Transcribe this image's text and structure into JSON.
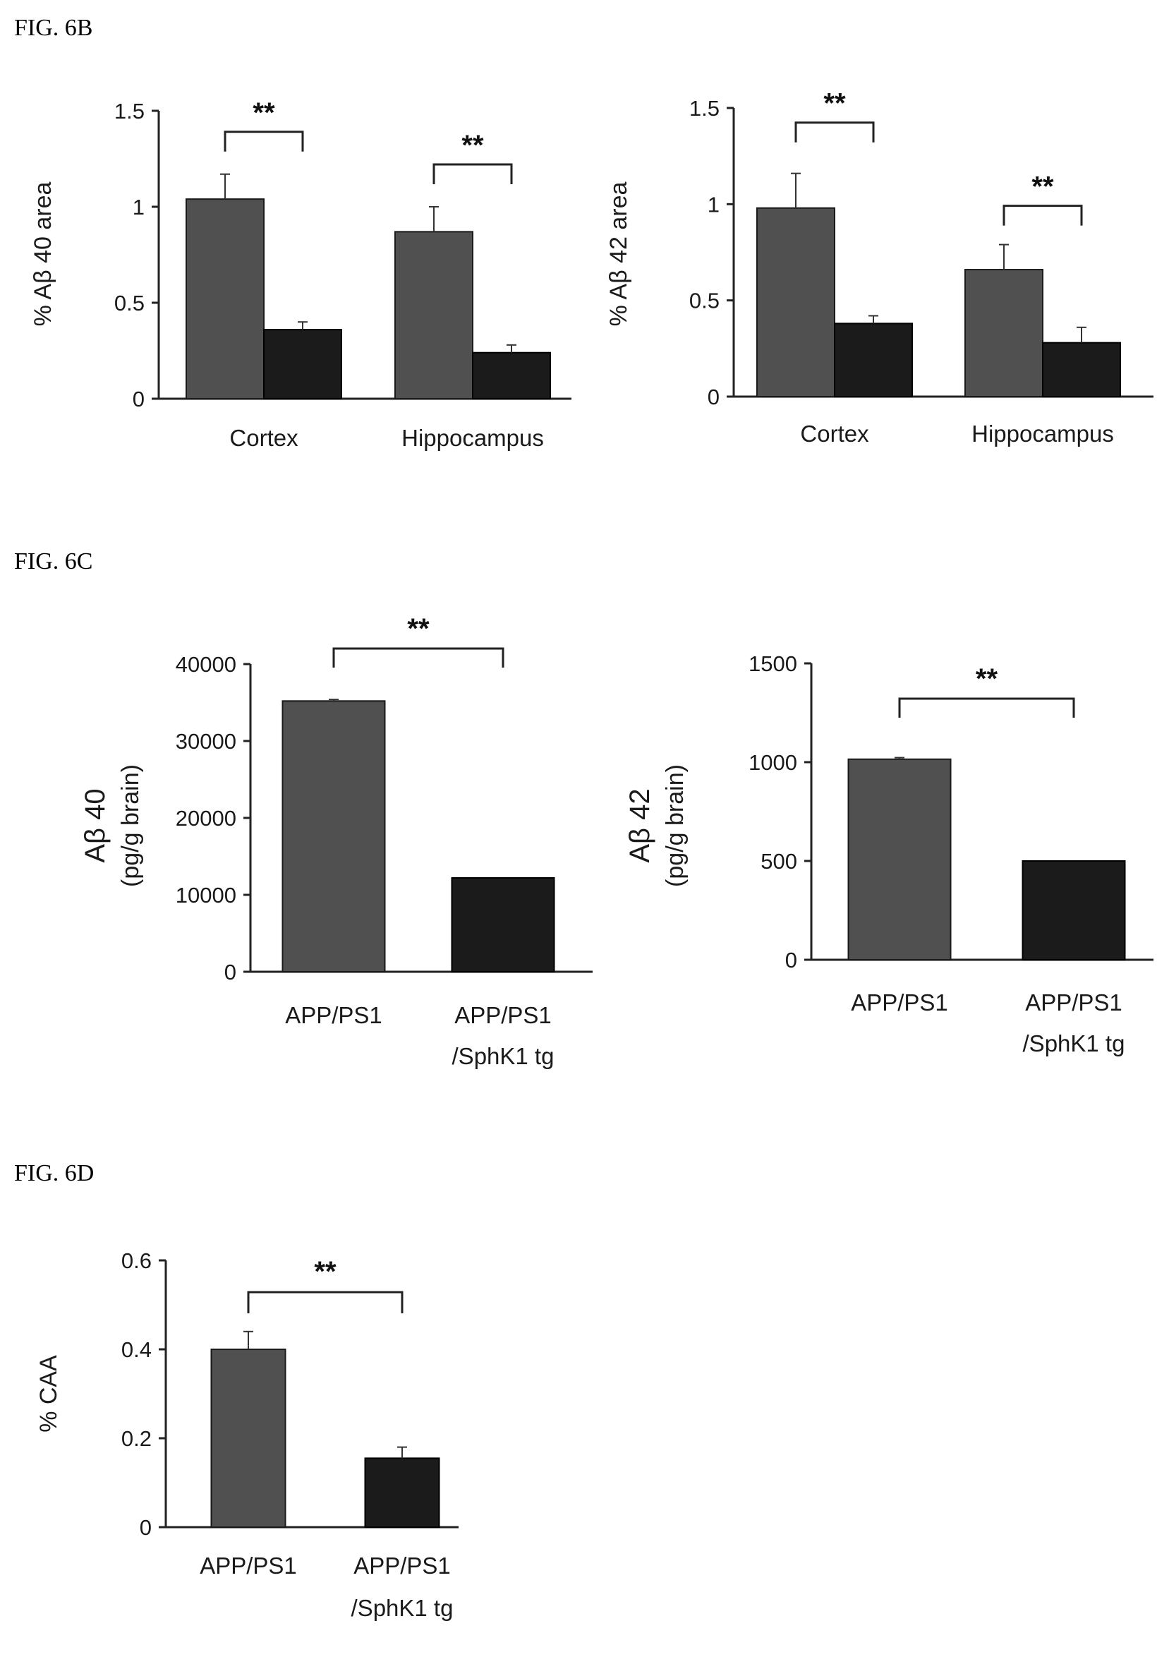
{
  "figure_labels": {
    "fig_6b": "FIG. 6B",
    "fig_6c": "FIG. 6C",
    "fig_6d": "FIG. 6D"
  },
  "colors": {
    "group_1": "#505050",
    "group_2": "#1b1b1b",
    "axis": "#222222"
  },
  "chart_data": [
    {
      "id": "ab40-area",
      "type": "bar",
      "ylabel": "% Aβ 40 area",
      "categories": [
        "Cortex",
        "Hippocampus"
      ],
      "series": [
        {
          "values": [
            1.04,
            0.87
          ],
          "errors": [
            0.13,
            0.13
          ]
        },
        {
          "values": [
            0.36,
            0.24
          ],
          "errors": [
            0.04,
            0.04
          ]
        }
      ],
      "ylim": [
        0,
        1.5
      ],
      "yticks": [
        0,
        0.5,
        1,
        1.5
      ],
      "ytick_labels": [
        "0",
        "0.5",
        "1",
        "1.5"
      ],
      "significance": [
        "**",
        "**"
      ],
      "grid": false
    },
    {
      "id": "ab42-area",
      "type": "bar",
      "ylabel": "% Aβ 42 area",
      "categories": [
        "Cortex",
        "Hippocampus"
      ],
      "series": [
        {
          "values": [
            0.98,
            0.66
          ],
          "errors": [
            0.18,
            0.13
          ]
        },
        {
          "values": [
            0.38,
            0.28
          ],
          "errors": [
            0.04,
            0.08
          ]
        }
      ],
      "ylim": [
        0,
        1.5
      ],
      "yticks": [
        0,
        0.5,
        1,
        1.5
      ],
      "ytick_labels": [
        "0",
        "0.5",
        "1",
        "1.5"
      ],
      "significance": [
        "**",
        "**"
      ],
      "grid": false
    },
    {
      "id": "ab40-brain",
      "type": "bar",
      "ylabel": "Aβ 40",
      "ylabel_line2": "(pg/g brain)",
      "categories": [
        "APP/PS1",
        "APP/PS1\n/SphK1 tg"
      ],
      "values": [
        35200,
        12200
      ],
      "errors": [
        200,
        0
      ],
      "ylim": [
        0,
        40000
      ],
      "yticks": [
        0,
        10000,
        20000,
        30000,
        40000
      ],
      "ytick_labels": [
        "0",
        "10000",
        "20000",
        "30000",
        "40000"
      ],
      "significance": "**",
      "grid": false
    },
    {
      "id": "ab42-brain",
      "type": "bar",
      "ylabel": "Aβ 42",
      "ylabel_line2": "(pg/g brain)",
      "categories": [
        "APP/PS1",
        "APP/PS1\n/SphK1 tg"
      ],
      "values": [
        1015,
        500
      ],
      "errors": [
        8,
        0
      ],
      "ylim": [
        0,
        1500
      ],
      "yticks": [
        0,
        500,
        1000,
        1500
      ],
      "ytick_labels": [
        "0",
        "500",
        "1000",
        "1500"
      ],
      "significance": "**",
      "grid": false
    },
    {
      "id": "caa",
      "type": "bar",
      "ylabel": "% CAA",
      "categories": [
        "APP/PS1",
        "APP/PS1\n/SphK1 tg"
      ],
      "values": [
        0.4,
        0.155
      ],
      "errors": [
        0.04,
        0.025
      ],
      "ylim": [
        0,
        0.6
      ],
      "yticks": [
        0,
        0.2,
        0.4,
        0.6
      ],
      "ytick_labels": [
        "0",
        "0.2",
        "0.4",
        "0.6"
      ],
      "significance": "**",
      "grid": false
    }
  ]
}
